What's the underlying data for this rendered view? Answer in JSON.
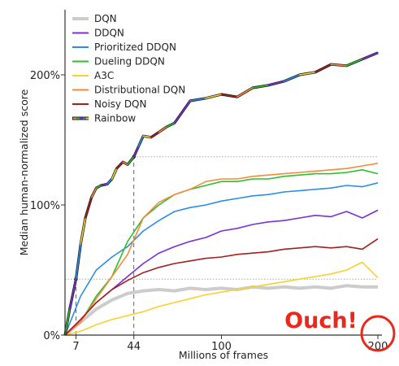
{
  "chart_data": {
    "type": "line",
    "xlabel": "Millions of frames",
    "ylabel": "Median human-normalized score",
    "xlim": [
      0,
      200
    ],
    "ylim": [
      0,
      250
    ],
    "x_ticks": [
      {
        "value": 7,
        "label": "7"
      },
      {
        "value": 44,
        "label": "44"
      },
      {
        "value": 100,
        "label": "100"
      },
      {
        "value": 200,
        "label": "200"
      }
    ],
    "y_ticks": [
      {
        "value": 0,
        "label": "0%"
      },
      {
        "value": 100,
        "label": "100%"
      },
      {
        "value": 200,
        "label": "200%"
      }
    ],
    "legend_position": "top-left",
    "grid": false,
    "series": [
      {
        "name": "DQN",
        "color": "#cccccc",
        "x": [
          0,
          10,
          20,
          30,
          40,
          50,
          60,
          70,
          80,
          90,
          100,
          110,
          120,
          130,
          140,
          150,
          160,
          170,
          180,
          190,
          200
        ],
        "y": [
          0,
          10,
          20,
          27,
          32,
          34,
          35,
          34,
          36,
          35,
          36,
          35,
          37,
          36,
          37,
          36,
          37,
          36,
          38,
          37,
          37
        ]
      },
      {
        "name": "DDQN",
        "color": "#7b2fd6",
        "x": [
          0,
          10,
          20,
          30,
          40,
          50,
          60,
          70,
          80,
          90,
          100,
          110,
          120,
          130,
          140,
          150,
          160,
          170,
          180,
          190,
          200
        ],
        "y": [
          0,
          12,
          25,
          35,
          45,
          55,
          63,
          68,
          72,
          75,
          80,
          82,
          85,
          87,
          88,
          90,
          92,
          91,
          95,
          90,
          96
        ]
      },
      {
        "name": "Prioritized DDQN",
        "color": "#2a8de8",
        "x": [
          0,
          10,
          20,
          30,
          40,
          50,
          60,
          70,
          80,
          90,
          100,
          110,
          120,
          130,
          140,
          150,
          160,
          170,
          180,
          190,
          200
        ],
        "y": [
          0,
          30,
          50,
          60,
          68,
          80,
          88,
          95,
          98,
          100,
          103,
          105,
          107,
          108,
          110,
          111,
          112,
          113,
          115,
          114,
          117
        ]
      },
      {
        "name": "Dueling DDQN",
        "color": "#2cc02c",
        "x": [
          0,
          10,
          20,
          30,
          40,
          50,
          60,
          70,
          80,
          90,
          100,
          110,
          120,
          130,
          140,
          150,
          160,
          170,
          180,
          190,
          200
        ],
        "y": [
          0,
          10,
          30,
          45,
          72,
          90,
          100,
          108,
          112,
          115,
          118,
          118,
          120,
          120,
          122,
          123,
          124,
          124,
          125,
          127,
          124
        ]
      },
      {
        "name": "A3C",
        "color": "#f5d22e",
        "x": [
          0,
          10,
          20,
          30,
          40,
          50,
          60,
          70,
          80,
          90,
          100,
          110,
          120,
          130,
          140,
          150,
          160,
          170,
          180,
          190,
          200
        ],
        "y": [
          0,
          3,
          8,
          12,
          15,
          18,
          22,
          25,
          28,
          31,
          33,
          35,
          37,
          39,
          41,
          43,
          45,
          47,
          50,
          56,
          44
        ]
      },
      {
        "name": "Distributional DQN",
        "color": "#f58a3a",
        "x": [
          0,
          10,
          20,
          30,
          40,
          50,
          60,
          70,
          80,
          90,
          100,
          110,
          120,
          130,
          140,
          150,
          160,
          170,
          180,
          190,
          200
        ],
        "y": [
          0,
          10,
          28,
          45,
          62,
          90,
          102,
          108,
          112,
          118,
          120,
          120,
          122,
          123,
          124,
          125,
          126,
          127,
          128,
          130,
          132
        ]
      },
      {
        "name": "Noisy DQN",
        "color": "#a51f1f",
        "x": [
          0,
          10,
          20,
          30,
          40,
          50,
          60,
          70,
          80,
          90,
          100,
          110,
          120,
          130,
          140,
          150,
          160,
          170,
          180,
          190,
          200
        ],
        "y": [
          0,
          12,
          25,
          35,
          42,
          48,
          52,
          55,
          57,
          59,
          60,
          62,
          63,
          64,
          66,
          67,
          68,
          67,
          68,
          66,
          74
        ]
      },
      {
        "name": "Rainbow",
        "color": "#333333",
        "multicolor": true,
        "x": [
          0,
          3,
          7,
          10,
          13,
          17,
          20,
          23,
          27,
          30,
          33,
          37,
          40,
          44,
          47,
          50,
          55,
          60,
          65,
          70,
          80,
          90,
          100,
          110,
          120,
          130,
          140,
          150,
          160,
          170,
          180,
          190,
          200
        ],
        "y": [
          0,
          20,
          43,
          70,
          90,
          106,
          113,
          115,
          116,
          120,
          128,
          133,
          131,
          137,
          145,
          153,
          152,
          156,
          160,
          163,
          180,
          182,
          185,
          183,
          190,
          192,
          195,
          200,
          202,
          208,
          207,
          212,
          217
        ]
      }
    ],
    "reference_lines": [
      {
        "type": "horizontal",
        "y": 43,
        "x_from": 0,
        "x_to": 200
      },
      {
        "type": "horizontal",
        "y": 137,
        "x_from": 44,
        "x_to": 200
      },
      {
        "type": "vertical",
        "x": 7,
        "y_from": 0,
        "y_to": 43
      },
      {
        "type": "vertical",
        "x": 44,
        "y_from": 0,
        "y_to": 137
      }
    ],
    "annotation": {
      "text": "Ouch!",
      "color": "#e8291c",
      "target_tick": 200
    }
  }
}
